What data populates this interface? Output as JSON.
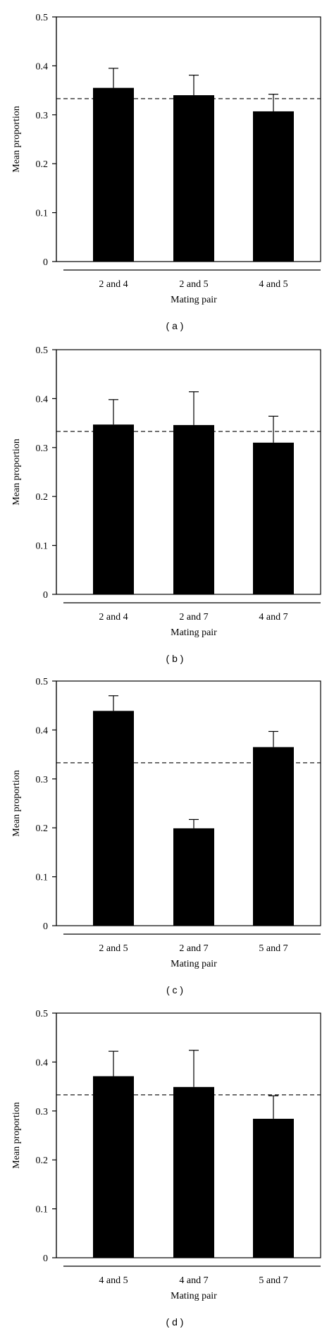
{
  "chart_data": [
    {
      "type": "bar",
      "panel_label": "( a )",
      "categories": [
        "2 and 4",
        "2 and 5",
        "4 and 5"
      ],
      "values": [
        0.355,
        0.34,
        0.307
      ],
      "error_upper": [
        0.395,
        0.381,
        0.342
      ],
      "reference_line": 0.333,
      "xlabel": "Mating pair",
      "ylabel": "Mean proportion",
      "ylim": [
        0,
        0.5
      ],
      "yticks": [
        "0",
        "0.1",
        "0.2",
        "0.3",
        "0.4",
        "0.5"
      ],
      "colors": {
        "bar": "#000000",
        "reference": "#000000"
      }
    },
    {
      "type": "bar",
      "panel_label": "( b )",
      "categories": [
        "2 and 4",
        "2 and 7",
        "4 and 7"
      ],
      "values": [
        0.347,
        0.346,
        0.31
      ],
      "error_upper": [
        0.398,
        0.414,
        0.364
      ],
      "reference_line": 0.333,
      "xlabel": "Mating pair",
      "ylabel": "Mean proportion",
      "ylim": [
        0,
        0.5
      ],
      "yticks": [
        "0",
        "0.1",
        "0.2",
        "0.3",
        "0.4",
        "0.5"
      ],
      "colors": {
        "bar": "#000000",
        "reference": "#000000"
      }
    },
    {
      "type": "bar",
      "panel_label": "( c )",
      "categories": [
        "2 and 5",
        "2 and 7",
        "5 and 7"
      ],
      "values": [
        0.439,
        0.199,
        0.365
      ],
      "error_upper": [
        0.47,
        0.217,
        0.397
      ],
      "reference_line": 0.333,
      "xlabel": "Mating pair",
      "ylabel": "Mean proportion",
      "ylim": [
        0,
        0.5
      ],
      "yticks": [
        "0",
        "0.1",
        "0.2",
        "0.3",
        "0.4",
        "0.5"
      ],
      "colors": {
        "bar": "#000000",
        "reference": "#000000"
      }
    },
    {
      "type": "bar",
      "panel_label": "( d )",
      "categories": [
        "4 and 5",
        "4 and 7",
        "5 and 7"
      ],
      "values": [
        0.371,
        0.349,
        0.284
      ],
      "error_upper": [
        0.422,
        0.424,
        0.331
      ],
      "reference_line": 0.333,
      "xlabel": "Mating pair",
      "ylabel": "Mean proportion",
      "ylim": [
        0,
        0.5
      ],
      "yticks": [
        "0",
        "0.1",
        "0.2",
        "0.3",
        "0.4",
        "0.5"
      ],
      "colors": {
        "bar": "#000000",
        "reference": "#000000"
      }
    }
  ]
}
